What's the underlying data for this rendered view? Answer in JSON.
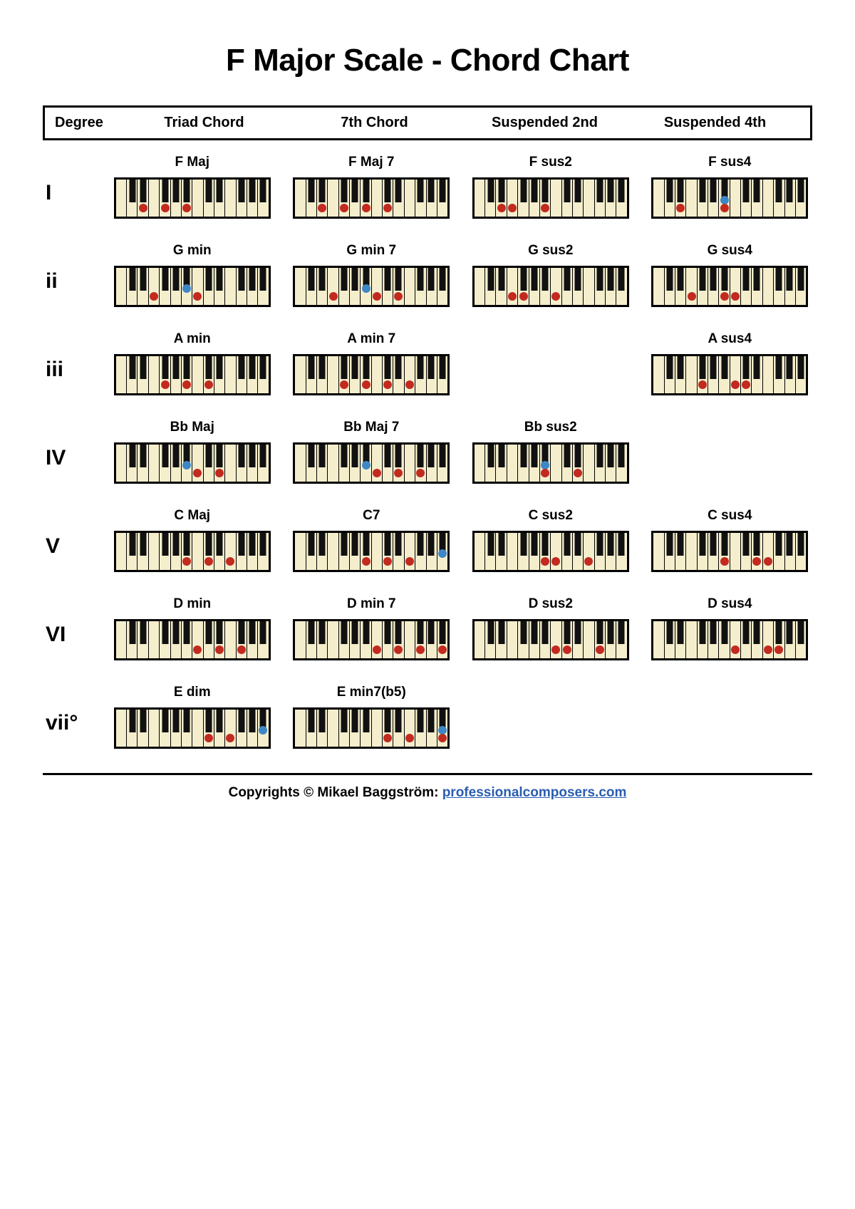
{
  "title": "F Major Scale - Chord Chart",
  "columns": [
    "Degree",
    "Triad Chord",
    "7th Chord",
    "Suspended 2nd",
    "Suspended 4th"
  ],
  "footer_prefix": "Copyrights © Mikael Baggström: ",
  "footer_link_text": "professionalcomposers.com",
  "keyboard": {
    "white_count": 14,
    "key_color": "#f5eecd",
    "border_color": "#000000",
    "black_positions_pct": [
      10.71,
      17.86,
      32.14,
      39.29,
      46.43,
      60.71,
      67.86,
      82.14,
      89.29,
      96.43
    ],
    "dot_red": "#c22a1f",
    "dot_blue": "#3d87c7",
    "dot_bottom_pct": 12,
    "dot_black_top_pct": 44
  },
  "rows": [
    {
      "degree": "I",
      "cells": [
        {
          "name": "F Maj",
          "dots": [
            {
              "w": 3,
              "c": "r"
            },
            {
              "w": 5,
              "c": "r"
            },
            {
              "w": 7,
              "c": "r"
            }
          ]
        },
        {
          "name": "F Maj 7",
          "dots": [
            {
              "w": 3,
              "c": "r"
            },
            {
              "w": 5,
              "c": "r"
            },
            {
              "w": 7,
              "c": "r"
            },
            {
              "w": 9,
              "c": "r"
            }
          ]
        },
        {
          "name": "F sus2",
          "dots": [
            {
              "w": 3,
              "c": "r"
            },
            {
              "w": 4,
              "c": "r"
            },
            {
              "w": 7,
              "c": "r"
            }
          ]
        },
        {
          "name": "F sus4",
          "dots": [
            {
              "w": 3,
              "c": "r"
            },
            {
              "b": 5,
              "c": "b"
            },
            {
              "w": 7,
              "c": "r"
            }
          ]
        }
      ]
    },
    {
      "degree": "ii",
      "cells": [
        {
          "name": "G min",
          "dots": [
            {
              "w": 4,
              "c": "r"
            },
            {
              "b": 5,
              "c": "b"
            },
            {
              "w": 8,
              "c": "r"
            }
          ]
        },
        {
          "name": "G min 7",
          "dots": [
            {
              "w": 4,
              "c": "r"
            },
            {
              "b": 5,
              "c": "b"
            },
            {
              "w": 8,
              "c": "r"
            },
            {
              "w": 10,
              "c": "r"
            }
          ]
        },
        {
          "name": "G sus2",
          "dots": [
            {
              "w": 4,
              "c": "r"
            },
            {
              "w": 5,
              "c": "r"
            },
            {
              "w": 8,
              "c": "r"
            }
          ]
        },
        {
          "name": "G sus4",
          "dots": [
            {
              "w": 4,
              "c": "r"
            },
            {
              "w": 7,
              "c": "r"
            },
            {
              "w": 8,
              "c": "r"
            }
          ]
        }
      ]
    },
    {
      "degree": "iii",
      "cells": [
        {
          "name": "A min",
          "dots": [
            {
              "w": 5,
              "c": "r"
            },
            {
              "w": 7,
              "c": "r"
            },
            {
              "w": 9,
              "c": "r"
            }
          ]
        },
        {
          "name": "A min 7",
          "dots": [
            {
              "w": 5,
              "c": "r"
            },
            {
              "w": 7,
              "c": "r"
            },
            {
              "w": 9,
              "c": "r"
            },
            {
              "w": 11,
              "c": "r"
            }
          ]
        },
        null,
        {
          "name": "A sus4",
          "dots": [
            {
              "w": 5,
              "c": "r"
            },
            {
              "w": 8,
              "c": "r"
            },
            {
              "w": 9,
              "c": "r"
            }
          ]
        }
      ]
    },
    {
      "degree": "IV",
      "cells": [
        {
          "name": "Bb Maj",
          "dots": [
            {
              "b": 5,
              "c": "b"
            },
            {
              "w": 8,
              "c": "r"
            },
            {
              "w": 10,
              "c": "r"
            }
          ]
        },
        {
          "name": "Bb Maj 7",
          "dots": [
            {
              "b": 5,
              "c": "b"
            },
            {
              "w": 8,
              "c": "r"
            },
            {
              "w": 10,
              "c": "r"
            },
            {
              "w": 12,
              "c": "r"
            }
          ]
        },
        {
          "name": "Bb sus2",
          "dots": [
            {
              "b": 5,
              "c": "b"
            },
            {
              "w": 7,
              "c": "r"
            },
            {
              "w": 10,
              "c": "r"
            }
          ]
        },
        null
      ]
    },
    {
      "degree": "V",
      "cells": [
        {
          "name": "C Maj",
          "dots": [
            {
              "w": 7,
              "c": "r"
            },
            {
              "w": 9,
              "c": "r"
            },
            {
              "w": 11,
              "c": "r"
            }
          ]
        },
        {
          "name": "C7",
          "dots": [
            {
              "w": 7,
              "c": "r"
            },
            {
              "w": 9,
              "c": "r"
            },
            {
              "w": 11,
              "c": "r"
            },
            {
              "b": 10,
              "c": "b"
            }
          ]
        },
        {
          "name": "C sus2",
          "dots": [
            {
              "w": 7,
              "c": "r"
            },
            {
              "w": 8,
              "c": "r"
            },
            {
              "w": 11,
              "c": "r"
            }
          ]
        },
        {
          "name": "C sus4",
          "dots": [
            {
              "w": 7,
              "c": "r"
            },
            {
              "w": 10,
              "c": "r"
            },
            {
              "w": 11,
              "c": "r"
            }
          ]
        }
      ]
    },
    {
      "degree": "VI",
      "cells": [
        {
          "name": "D min",
          "dots": [
            {
              "w": 8,
              "c": "r"
            },
            {
              "w": 10,
              "c": "r"
            },
            {
              "w": 12,
              "c": "r"
            }
          ]
        },
        {
          "name": "D min 7",
          "dots": [
            {
              "w": 8,
              "c": "r"
            },
            {
              "w": 10,
              "c": "r"
            },
            {
              "w": 12,
              "c": "r"
            },
            {
              "w": 14,
              "c": "r"
            }
          ]
        },
        {
          "name": "D sus2",
          "dots": [
            {
              "w": 8,
              "c": "r"
            },
            {
              "w": 9,
              "c": "r"
            },
            {
              "w": 12,
              "c": "r"
            }
          ]
        },
        {
          "name": "D sus4",
          "dots": [
            {
              "w": 8,
              "c": "r"
            },
            {
              "w": 11,
              "c": "r"
            },
            {
              "w": 12,
              "c": "r"
            }
          ]
        }
      ]
    },
    {
      "degree": "vii°",
      "cells": [
        {
          "name": "E dim",
          "dots": [
            {
              "w": 9,
              "c": "r"
            },
            {
              "w": 11,
              "c": "r"
            },
            {
              "b": 10,
              "c": "b"
            }
          ]
        },
        {
          "name": "E min7(b5)",
          "dots": [
            {
              "w": 9,
              "c": "r"
            },
            {
              "w": 11,
              "c": "r"
            },
            {
              "b": 10,
              "c": "b"
            },
            {
              "w": 15,
              "c": "r"
            }
          ]
        },
        null,
        null
      ]
    }
  ]
}
